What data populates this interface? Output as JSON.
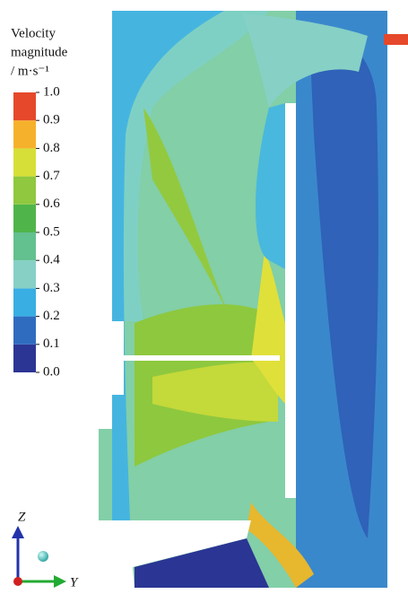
{
  "chart_data": {
    "type": "contour",
    "colorbar_label": [
      "Velocity",
      "magnitude",
      "/ m·s⁻¹"
    ],
    "clim": [
      0,
      1
    ],
    "cticks": [
      {
        "value": 0,
        "label": "0.0"
      },
      0.1,
      0.2,
      0.3,
      0.4,
      0.5,
      0.6,
      0.7,
      0.8,
      0.9,
      {
        "value": 1,
        "label": "1.0"
      }
    ],
    "colors": [
      "#2b3594",
      "#2f6cc0",
      "#39aee3",
      "#86d0c6",
      "#63c08f",
      "#4fb54a",
      "#90c83f",
      "#d6df38",
      "#f6b12c",
      "#e5482a"
    ],
    "axis_labels": {
      "vertical": "Z",
      "horizontal": "Y"
    }
  }
}
